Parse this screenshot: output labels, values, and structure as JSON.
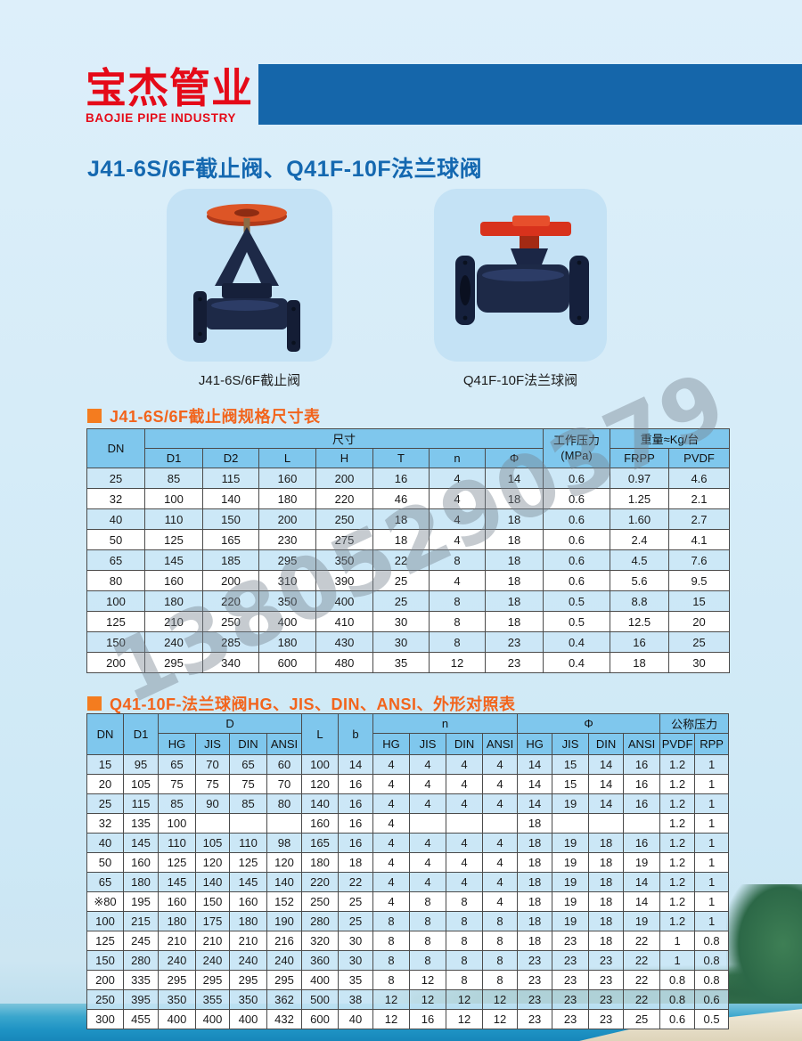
{
  "header": {
    "logo_cn": "宝杰管业",
    "logo_en": "BAOJIE PIPE INDUSTRY"
  },
  "page_title": "J41-6S/6F截止阀、Q41F-10F法兰球阀",
  "products": [
    {
      "caption": "J41-6S/6F截止阀"
    },
    {
      "caption": "Q41F-10F法兰球阀"
    }
  ],
  "watermark": "13805290379",
  "colors": {
    "brand_red": "#e50a18",
    "bar_blue": "#1566aa",
    "title_blue": "#1468b0",
    "section_orange": "#f2641c",
    "table_header_blue": "#7fc7ed",
    "alt_row_blue": "#cfe8f8"
  },
  "table1": {
    "title": "J41-6S/6F截止阀规格尺寸表",
    "headers": {
      "dn": "DN",
      "size_group": "尺寸",
      "cols": [
        "D1",
        "D2",
        "L",
        "H",
        "T",
        "n",
        "Φ"
      ],
      "pressure": "工作压力",
      "pressure_unit": "(MPa)",
      "weight_group": "重量≈Kg/台",
      "weight_cols": [
        "FRPP",
        "PVDF"
      ]
    },
    "rows": [
      [
        "25",
        "85",
        "115",
        "160",
        "200",
        "16",
        "4",
        "14",
        "0.6",
        "0.97",
        "4.6"
      ],
      [
        "32",
        "100",
        "140",
        "180",
        "220",
        "46",
        "4",
        "18",
        "0.6",
        "1.25",
        "2.1"
      ],
      [
        "40",
        "110",
        "150",
        "200",
        "250",
        "18",
        "4",
        "18",
        "0.6",
        "1.60",
        "2.7"
      ],
      [
        "50",
        "125",
        "165",
        "230",
        "275",
        "18",
        "4",
        "18",
        "0.6",
        "2.4",
        "4.1"
      ],
      [
        "65",
        "145",
        "185",
        "295",
        "350",
        "22",
        "8",
        "18",
        "0.6",
        "4.5",
        "7.6"
      ],
      [
        "80",
        "160",
        "200",
        "310",
        "390",
        "25",
        "4",
        "18",
        "0.6",
        "5.6",
        "9.5"
      ],
      [
        "100",
        "180",
        "220",
        "350",
        "400",
        "25",
        "8",
        "18",
        "0.5",
        "8.8",
        "15"
      ],
      [
        "125",
        "210",
        "250",
        "400",
        "410",
        "30",
        "8",
        "18",
        "0.5",
        "12.5",
        "20"
      ],
      [
        "150",
        "240",
        "285",
        "180",
        "430",
        "30",
        "8",
        "23",
        "0.4",
        "16",
        "25"
      ],
      [
        "200",
        "295",
        "340",
        "600",
        "480",
        "35",
        "12",
        "23",
        "0.4",
        "18",
        "30"
      ]
    ]
  },
  "table2": {
    "title": "Q41-10F-法兰球阀HG、JIS、DIN、ANSI、外形对照表",
    "headers": {
      "dn": "DN",
      "d1": "D1",
      "d_group": "D",
      "l": "L",
      "b": "b",
      "n_group": "n",
      "phi_group": "Φ",
      "pressure_group": "公称压力",
      "std_cols": [
        "HG",
        "JIS",
        "DIN",
        "ANSI"
      ],
      "pressure_cols": [
        "PVDF",
        "RPP"
      ]
    },
    "rows": [
      [
        "15",
        "95",
        "65",
        "70",
        "65",
        "60",
        "100",
        "14",
        "4",
        "4",
        "4",
        "4",
        "14",
        "15",
        "14",
        "16",
        "1.2",
        "1"
      ],
      [
        "20",
        "105",
        "75",
        "75",
        "75",
        "70",
        "120",
        "16",
        "4",
        "4",
        "4",
        "4",
        "14",
        "15",
        "14",
        "16",
        "1.2",
        "1"
      ],
      [
        "25",
        "115",
        "85",
        "90",
        "85",
        "80",
        "140",
        "16",
        "4",
        "4",
        "4",
        "4",
        "14",
        "19",
        "14",
        "16",
        "1.2",
        "1"
      ],
      [
        "32",
        "135",
        "100",
        "",
        "",
        "",
        "160",
        "16",
        "4",
        "",
        "",
        "",
        "18",
        "",
        "",
        "",
        "1.2",
        "1"
      ],
      [
        "40",
        "145",
        "110",
        "105",
        "110",
        "98",
        "165",
        "16",
        "4",
        "4",
        "4",
        "4",
        "18",
        "19",
        "18",
        "16",
        "1.2",
        "1"
      ],
      [
        "50",
        "160",
        "125",
        "120",
        "125",
        "120",
        "180",
        "18",
        "4",
        "4",
        "4",
        "4",
        "18",
        "19",
        "18",
        "19",
        "1.2",
        "1"
      ],
      [
        "65",
        "180",
        "145",
        "140",
        "145",
        "140",
        "220",
        "22",
        "4",
        "4",
        "4",
        "4",
        "18",
        "19",
        "18",
        "14",
        "1.2",
        "1"
      ],
      [
        "※80",
        "195",
        "160",
        "150",
        "160",
        "152",
        "250",
        "25",
        "4",
        "8",
        "8",
        "4",
        "18",
        "19",
        "18",
        "14",
        "1.2",
        "1"
      ],
      [
        "100",
        "215",
        "180",
        "175",
        "180",
        "190",
        "280",
        "25",
        "8",
        "8",
        "8",
        "8",
        "18",
        "19",
        "18",
        "19",
        "1.2",
        "1"
      ],
      [
        "125",
        "245",
        "210",
        "210",
        "210",
        "216",
        "320",
        "30",
        "8",
        "8",
        "8",
        "8",
        "18",
        "23",
        "18",
        "22",
        "1",
        "0.8"
      ],
      [
        "150",
        "280",
        "240",
        "240",
        "240",
        "240",
        "360",
        "30",
        "8",
        "8",
        "8",
        "8",
        "23",
        "23",
        "23",
        "22",
        "1",
        "0.8"
      ],
      [
        "200",
        "335",
        "295",
        "295",
        "295",
        "295",
        "400",
        "35",
        "8",
        "12",
        "8",
        "8",
        "23",
        "23",
        "23",
        "22",
        "0.8",
        "0.8"
      ],
      [
        "250",
        "395",
        "350",
        "355",
        "350",
        "362",
        "500",
        "38",
        "12",
        "12",
        "12",
        "12",
        "23",
        "23",
        "23",
        "22",
        "0.8",
        "0.6"
      ],
      [
        "300",
        "455",
        "400",
        "400",
        "400",
        "432",
        "600",
        "40",
        "12",
        "16",
        "12",
        "12",
        "23",
        "23",
        "23",
        "25",
        "0.6",
        "0.5"
      ]
    ]
  }
}
